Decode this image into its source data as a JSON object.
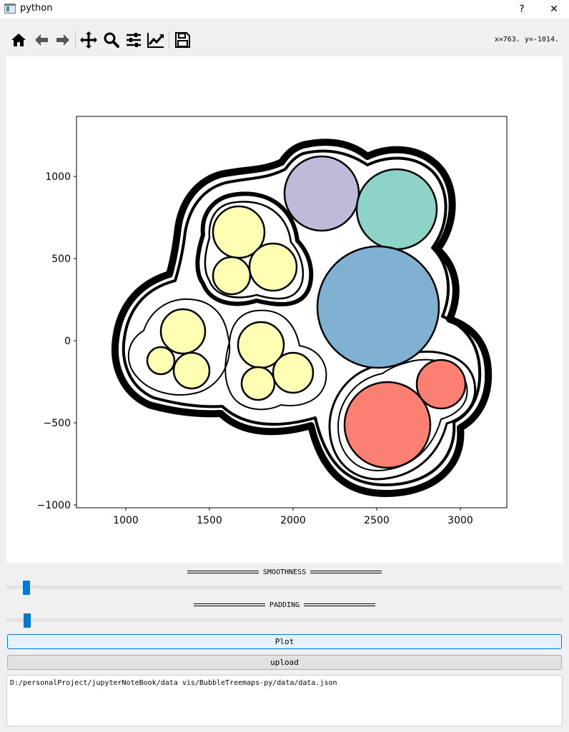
{
  "window": {
    "title": "python",
    "help_label": "?",
    "close_label": "✕"
  },
  "toolbar": {
    "tools": [
      {
        "name": "home-icon",
        "label": "Home"
      },
      {
        "name": "back-icon",
        "label": "Back"
      },
      {
        "name": "forward-icon",
        "label": "Forward"
      },
      {
        "name": "pan-icon",
        "label": "Pan"
      },
      {
        "name": "zoom-icon",
        "label": "Zoom"
      },
      {
        "name": "subplots-icon",
        "label": "Configure subplots"
      },
      {
        "name": "axes-icon",
        "label": "Edit axis"
      },
      {
        "name": "save-icon",
        "label": "Save"
      }
    ],
    "coords_readout": "x=763.  y=-1014."
  },
  "chart": {
    "x_ticks": [
      "1000",
      "1500",
      "2000",
      "2500",
      "3000"
    ],
    "y_ticks": [
      "1000",
      "500",
      "0",
      "−500",
      "−1000"
    ]
  },
  "controls": {
    "smoothness_label": "SMOOTHNESS",
    "smoothness_value": 0.04,
    "padding_label": "PADDING",
    "padding_value": 0.04,
    "plot_button": "Plot",
    "upload_button": "upload",
    "file_path": "D:/personalProject/jupyterNoteBook/data vis/BubbleTreemaps-py/data/data.json"
  },
  "colors": {
    "accent": "#0078d7",
    "yellow_leaf": "#ffffb3",
    "lavender_leaf": "#bebada",
    "teal_leaf": "#8dd3c7",
    "blue_leaf": "#80b1d3",
    "salmon_leaf": "#fb8072"
  }
}
